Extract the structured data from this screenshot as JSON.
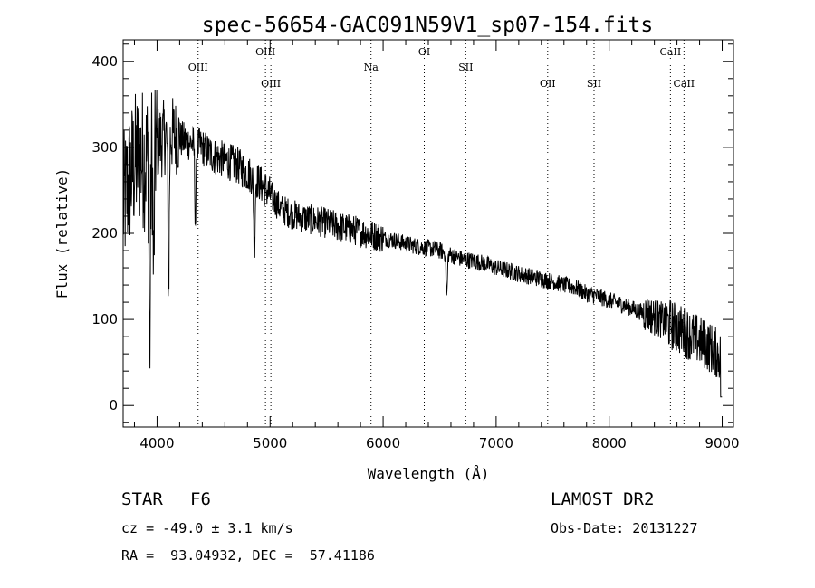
{
  "chart_data": {
    "type": "line",
    "title": "spec-56654-GAC091N59V1_sp07-154.fits",
    "xlabel": "Wavelength (Å)",
    "ylabel": "Flux (relative)",
    "xlim": [
      3700,
      9100
    ],
    "ylim": [
      -25,
      425
    ],
    "xticks": [
      4000,
      5000,
      6000,
      7000,
      8000,
      9000
    ],
    "yticks": [
      0,
      100,
      200,
      300,
      400
    ],
    "spectrum_anchor_x": [
      3700,
      3750,
      3800,
      3850,
      3900,
      3950,
      4000,
      4050,
      4100,
      4150,
      4200,
      4300,
      4400,
      4500,
      4600,
      4700,
      4800,
      4900,
      5000,
      5100,
      5200,
      5300,
      5400,
      5500,
      5600,
      5700,
      5800,
      5900,
      6000,
      6100,
      6200,
      6300,
      6400,
      6500,
      6600,
      6700,
      6800,
      6900,
      7000,
      7100,
      7200,
      7300,
      7400,
      7500,
      7600,
      7700,
      7800,
      7900,
      8000,
      8100,
      8200,
      8300,
      8400,
      8500,
      8600,
      8700,
      8800,
      8900,
      9000
    ],
    "spectrum_anchor_y": [
      230,
      260,
      280,
      290,
      285,
      300,
      305,
      310,
      315,
      315,
      310,
      305,
      300,
      290,
      285,
      280,
      270,
      260,
      245,
      228,
      222,
      218,
      215,
      212,
      208,
      205,
      202,
      198,
      195,
      192,
      188,
      185,
      183,
      180,
      175,
      170,
      168,
      165,
      160,
      157,
      153,
      150,
      147,
      144,
      140,
      137,
      130,
      127,
      122,
      118,
      113,
      108,
      103,
      97,
      90,
      83,
      75,
      67,
      55
    ],
    "absorption_dips": [
      {
        "x": 3935,
        "depth": 230
      },
      {
        "x": 3970,
        "depth": 150
      },
      {
        "x": 4102,
        "depth": 175
      },
      {
        "x": 4340,
        "depth": 90
      },
      {
        "x": 4861,
        "depth": 80
      },
      {
        "x": 6563,
        "depth": 50
      }
    ],
    "spectral_lines": [
      {
        "label": "OIII",
        "x": 4363,
        "row": "mid"
      },
      {
        "label": "OIII",
        "x": 4959,
        "row": "top"
      },
      {
        "label": "OIII",
        "x": 5007,
        "row": "low"
      },
      {
        "label": "Na",
        "x": 5893,
        "row": "mid"
      },
      {
        "label": "OI",
        "x": 6364,
        "row": "top"
      },
      {
        "label": "SII",
        "x": 6731,
        "row": "mid"
      },
      {
        "label": "OII",
        "x": 7456,
        "row": "low"
      },
      {
        "label": "SII",
        "x": 7866,
        "row": "low"
      },
      {
        "label": "CaII",
        "x": 8542,
        "row": "top"
      },
      {
        "label": "CaII",
        "x": 8662,
        "row": "low"
      }
    ]
  },
  "info": {
    "object_class": "STAR",
    "subclass": "F6",
    "survey": "LAMOST DR2",
    "redshift": "cz = -49.0 ± 3.1 km/s",
    "obs_date": "Obs-Date: 20131227",
    "coords": "RA =  93.04932, DEC =  57.41186"
  }
}
